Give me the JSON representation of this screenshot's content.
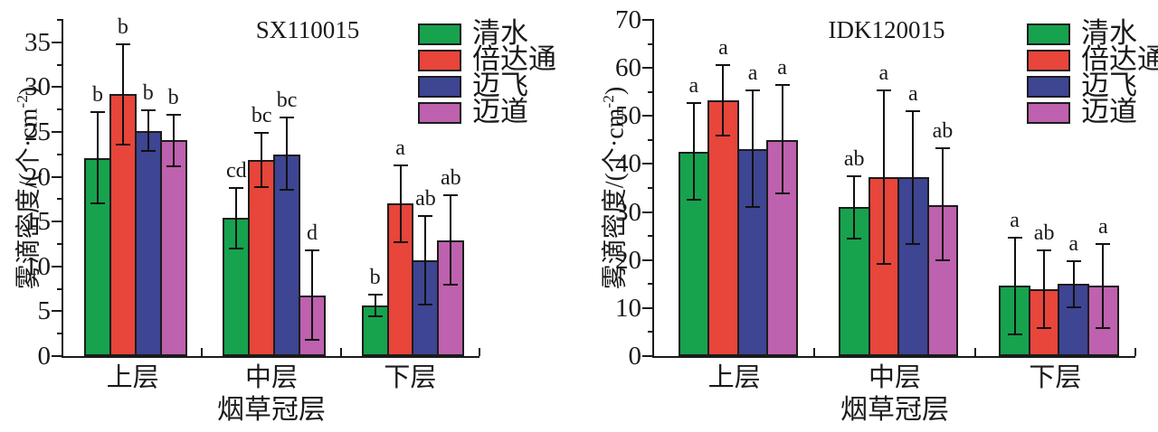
{
  "figure": {
    "background": "#ffffff",
    "axis_color": "#1a1a1a",
    "bar_border_color": "#1c1c1c"
  },
  "chart_data": [
    {
      "type": "bar",
      "title": "SX110015",
      "xlabel": "烟草冠层",
      "ylabel": "雾滴密度/(个·cm⁻²)",
      "ylabel_pre": "雾滴密度/(个·cm",
      "ylabel_sup": "-2",
      "ylabel_post": ")",
      "categories": [
        "上层",
        "中层",
        "下层"
      ],
      "ylim": [
        0,
        37.5
      ],
      "yticks": [
        0,
        5,
        10,
        15,
        20,
        25,
        30,
        35
      ],
      "yminor_step": 2.5,
      "grid": false,
      "legend_position": "top-right",
      "series": [
        {
          "name": "清水",
          "color": "#17A24E",
          "values": [
            22.1,
            15.4,
            5.6
          ],
          "err_low": [
            17.0,
            12.0,
            4.4
          ],
          "err_high": [
            27.2,
            18.7,
            6.9
          ],
          "letters": [
            "b",
            "cd",
            "b"
          ]
        },
        {
          "name": "倍达通",
          "color": "#E8453B",
          "values": [
            29.2,
            21.9,
            17.0
          ],
          "err_low": [
            23.6,
            18.9,
            12.7
          ],
          "err_high": [
            34.8,
            24.9,
            21.3
          ],
          "letters": [
            "b",
            "bc",
            "a"
          ]
        },
        {
          "name": "迈飞",
          "color": "#3E4592",
          "values": [
            25.1,
            22.5,
            10.7
          ],
          "err_low": [
            22.9,
            18.5,
            5.7
          ],
          "err_high": [
            27.4,
            26.6,
            15.6
          ],
          "letters": [
            "b",
            "bc",
            "ab"
          ]
        },
        {
          "name": "迈道",
          "color": "#BE61AE",
          "values": [
            24.1,
            6.8,
            12.9
          ],
          "err_low": [
            21.2,
            1.8,
            8.0
          ],
          "err_high": [
            26.9,
            11.8,
            17.9
          ],
          "letters": [
            "b",
            "d",
            "ab"
          ]
        }
      ]
    },
    {
      "type": "bar",
      "title": "IDK120015",
      "xlabel": "烟草冠层",
      "ylabel": "雾滴密度/(个·cm⁻²)",
      "ylabel_pre": "雾滴密度/(个·cm",
      "ylabel_sup": "-2",
      "ylabel_post": ")",
      "categories": [
        "上层",
        "中层",
        "下层"
      ],
      "ylim": [
        0,
        70
      ],
      "yticks": [
        0,
        10,
        20,
        30,
        40,
        50,
        60,
        70
      ],
      "yminor_step": 5,
      "grid": false,
      "legend_position": "top-right",
      "series": [
        {
          "name": "清水",
          "color": "#17A24E",
          "values": [
            42.6,
            31.0,
            14.6
          ],
          "err_low": [
            32.5,
            24.5,
            4.5
          ],
          "err_high": [
            52.6,
            37.5,
            24.6
          ],
          "letters": [
            "a",
            "ab",
            "a"
          ]
        },
        {
          "name": "倍达通",
          "color": "#E8453B",
          "values": [
            53.3,
            37.3,
            14.0
          ],
          "err_low": [
            46.0,
            19.2,
            5.8
          ],
          "err_high": [
            60.6,
            55.3,
            22.0
          ],
          "letters": [
            "a",
            "a",
            "ab"
          ]
        },
        {
          "name": "迈飞",
          "color": "#3E4592",
          "values": [
            43.0,
            37.2,
            15.1
          ],
          "err_low": [
            31.0,
            23.3,
            10.2
          ],
          "err_high": [
            55.3,
            51.0,
            19.8
          ],
          "letters": [
            "a",
            "a",
            "a"
          ]
        },
        {
          "name": "迈道",
          "color": "#BE61AE",
          "values": [
            45.0,
            31.5,
            14.6
          ],
          "err_low": [
            33.8,
            20.0,
            5.8
          ],
          "err_high": [
            56.4,
            43.3,
            23.3
          ],
          "letters": [
            "a",
            "ab",
            "a"
          ]
        }
      ]
    }
  ]
}
